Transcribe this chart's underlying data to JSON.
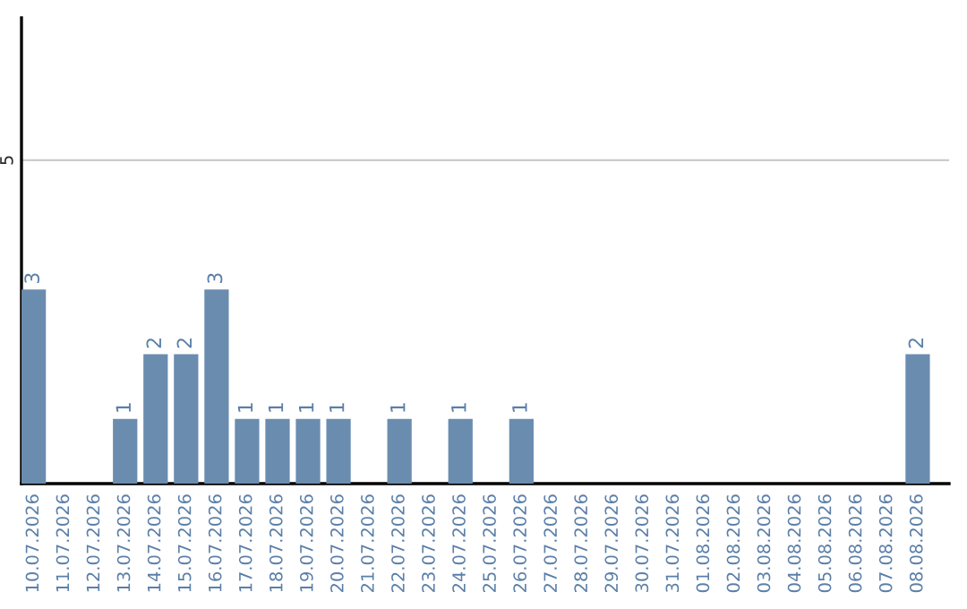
{
  "chart_data": {
    "type": "bar",
    "categories": [
      "10.07.2026",
      "11.07.2026",
      "12.07.2026",
      "13.07.2026",
      "14.07.2026",
      "15.07.2026",
      "16.07.2026",
      "17.07.2026",
      "18.07.2026",
      "19.07.2026",
      "20.07.2026",
      "21.07.2026",
      "22.07.2026",
      "23.07.2026",
      "24.07.2026",
      "25.07.2026",
      "26.07.2026",
      "27.07.2026",
      "28.07.2026",
      "29.07.2026",
      "30.07.2026",
      "31.07.2026",
      "01.08.2026",
      "02.08.2026",
      "03.08.2026",
      "04.08.2026",
      "05.08.2026",
      "06.08.2026",
      "07.08.2026",
      "08.08.2026"
    ],
    "values": [
      3,
      0,
      0,
      1,
      2,
      2,
      3,
      1,
      1,
      1,
      1,
      0,
      1,
      0,
      1,
      0,
      1,
      0,
      0,
      0,
      0,
      0,
      0,
      0,
      0,
      0,
      0,
      0,
      0,
      2
    ],
    "value_labels": [
      "3",
      null,
      null,
      "1",
      "2",
      "2",
      "3",
      "1",
      "1",
      "1",
      "1",
      null,
      "1",
      null,
      "1",
      null,
      "1",
      null,
      null,
      null,
      null,
      null,
      null,
      null,
      null,
      null,
      null,
      null,
      null,
      "2"
    ],
    "color": "#6a8caf",
    "ylim": [
      0,
      7.2
    ],
    "yticks": [
      {
        "value": 0,
        "label": null
      },
      5
    ],
    "grid": "y",
    "legend": false
  }
}
